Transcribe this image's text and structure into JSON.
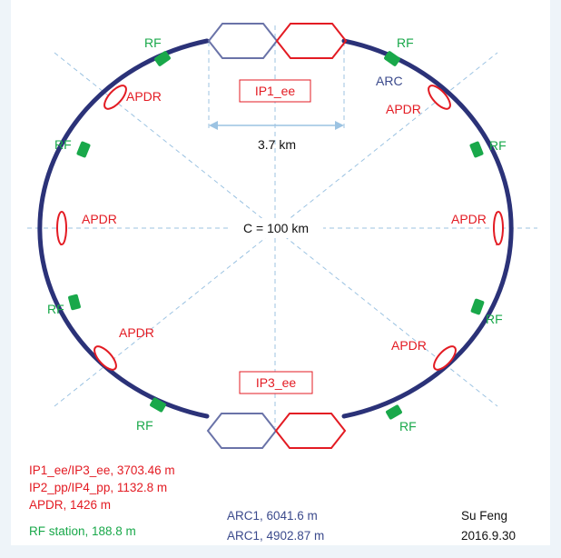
{
  "labels": {
    "rf": "RF",
    "apdr": "APDR",
    "arc": "ARC",
    "ip_top": "IP1_ee",
    "ip_bottom": "IP3_ee",
    "width": "3.7 km",
    "circumference": "C = 100 km"
  },
  "legend": {
    "ip_ee": "IP1_ee/IP3_ee, 3703.46 m",
    "ip_pp": "IP2_pp/IP4_pp, 1132.8 m",
    "apdr": "APDR, 1426 m",
    "rf": "RF station, 188.8 m",
    "arc1": "ARC1, 6041.6 m",
    "arc2": "ARC1, 4902.87 m"
  },
  "author": {
    "name": "Su Feng",
    "date": "2016.9.30"
  },
  "colors": {
    "ring": "#2b3278",
    "rf": "#19a84a",
    "apdr": "#e31b23",
    "ip_red": "#e31b23",
    "ip_blue": "#6a73a8",
    "guide": "#9cc3e2",
    "arrow": "#9cc3e2",
    "text": "#111111",
    "arc_text": "#3b4a8c"
  }
}
